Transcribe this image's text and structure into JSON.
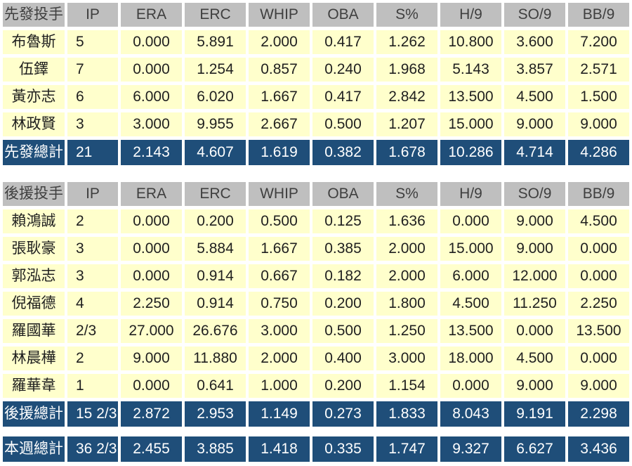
{
  "colors": {
    "page_bg": "#FFFFFF",
    "header_bg": "#BFBFBF",
    "header_text": "#3F3F3F",
    "row_bg": "#FFFFCC",
    "row_text": "#1F1F1F",
    "total_bg": "#1F4E79",
    "total_text": "#FFFFFF"
  },
  "chart_data": {
    "type": "table",
    "columns": [
      "IP",
      "ERA",
      "ERC",
      "WHIP",
      "OBA",
      "S%",
      "H/9",
      "SO/9",
      "BB/9"
    ],
    "sections": [
      {
        "header_label": "先發投手",
        "rows": [
          {
            "name": "布魯斯",
            "values": [
              "5",
              "0.000",
              "5.891",
              "2.000",
              "0.417",
              "1.262",
              "10.800",
              "3.600",
              "7.200"
            ]
          },
          {
            "name": "伍鐸",
            "values": [
              "7",
              "0.000",
              "1.254",
              "0.857",
              "0.240",
              "1.968",
              "5.143",
              "3.857",
              "2.571"
            ]
          },
          {
            "name": "黃亦志",
            "values": [
              "6",
              "6.000",
              "6.020",
              "1.667",
              "0.417",
              "2.842",
              "13.500",
              "4.500",
              "1.500"
            ]
          },
          {
            "name": "林政賢",
            "values": [
              "3",
              "3.000",
              "9.955",
              "2.667",
              "0.500",
              "1.207",
              "15.000",
              "9.000",
              "9.000"
            ]
          }
        ],
        "total": {
          "name": "先發總計",
          "values": [
            "21",
            "2.143",
            "4.607",
            "1.619",
            "0.382",
            "1.678",
            "10.286",
            "4.714",
            "4.286"
          ]
        }
      },
      {
        "header_label": "後援投手",
        "rows": [
          {
            "name": "賴鴻誠",
            "values": [
              "2",
              "0.000",
              "0.200",
              "0.500",
              "0.125",
              "1.636",
              "0.000",
              "9.000",
              "4.500"
            ]
          },
          {
            "name": "張耿豪",
            "values": [
              "3",
              "0.000",
              "5.884",
              "1.667",
              "0.385",
              "2.000",
              "15.000",
              "9.000",
              "0.000"
            ]
          },
          {
            "name": "郭泓志",
            "values": [
              "3",
              "0.000",
              "0.914",
              "0.667",
              "0.182",
              "2.000",
              "6.000",
              "12.000",
              "0.000"
            ]
          },
          {
            "name": "倪福德",
            "values": [
              "4",
              "2.250",
              "0.914",
              "0.750",
              "0.200",
              "1.800",
              "4.500",
              "11.250",
              "2.250"
            ]
          },
          {
            "name": "羅國華",
            "values": [
              "2/3",
              "27.000",
              "26.676",
              "3.000",
              "0.500",
              "1.250",
              "13.500",
              "0.000",
              "13.500"
            ]
          },
          {
            "name": "林晨樺",
            "values": [
              "2",
              "9.000",
              "11.880",
              "2.000",
              "0.400",
              "3.000",
              "18.000",
              "4.500",
              "0.000"
            ]
          },
          {
            "name": "羅華韋",
            "values": [
              "1",
              "0.000",
              "0.641",
              "1.000",
              "0.200",
              "1.154",
              "0.000",
              "9.000",
              "9.000"
            ]
          }
        ],
        "total": {
          "name": "後援總計",
          "values": [
            "15 2/3",
            "2.872",
            "2.953",
            "1.149",
            "0.273",
            "1.833",
            "8.043",
            "9.191",
            "2.298"
          ]
        }
      }
    ],
    "grand_total": {
      "name": "本週總計",
      "values": [
        "36 2/3",
        "2.455",
        "3.885",
        "1.418",
        "0.335",
        "1.747",
        "9.327",
        "6.627",
        "3.436"
      ]
    }
  }
}
